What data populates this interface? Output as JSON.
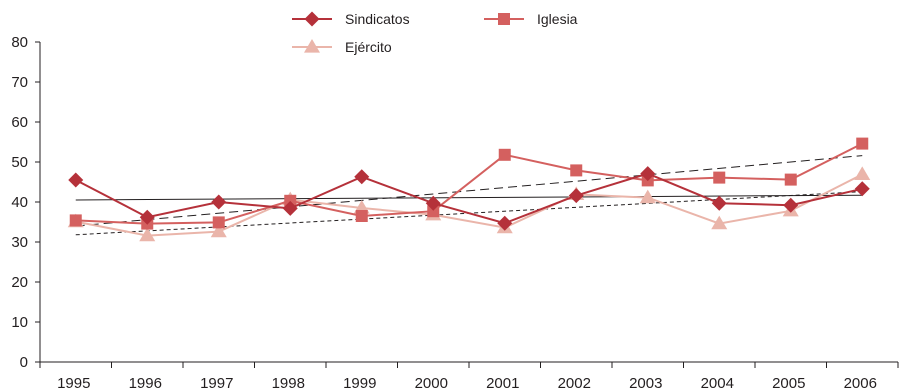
{
  "chart_data": {
    "type": "line",
    "title": "",
    "xlabel": "",
    "ylabel": "",
    "ylim": [
      0,
      80
    ],
    "yticks": [
      0,
      10,
      20,
      30,
      40,
      50,
      60,
      70,
      80
    ],
    "grid": false,
    "legend_position": "top-center",
    "categories": [
      "1995",
      "1996",
      "1997",
      "1998",
      "1999",
      "2000",
      "2001",
      "2002",
      "2003",
      "2004",
      "2005",
      "2006"
    ],
    "series": [
      {
        "name": "Sindicatos",
        "marker": "diamond",
        "color": "#b5313a",
        "values": [
          45.5,
          36.2,
          40.0,
          38.4,
          46.3,
          39.7,
          34.7,
          41.6,
          47.1,
          39.7,
          39.2,
          43.3
        ]
      },
      {
        "name": "Iglesia",
        "marker": "square",
        "color": "#d4605f",
        "values": [
          35.4,
          34.6,
          34.9,
          40.3,
          36.5,
          37.7,
          51.8,
          47.9,
          45.4,
          46.1,
          45.6,
          54.6
        ]
      },
      {
        "name": "Ejército",
        "marker": "triangle",
        "color": "#eab5aa",
        "values": [
          35.1,
          31.6,
          32.6,
          40.6,
          38.5,
          36.8,
          33.6,
          41.9,
          41.1,
          34.6,
          37.8,
          46.9
        ]
      }
    ],
    "trendlines": [
      {
        "of": "Sindicatos",
        "style": "solid",
        "color": "#231f20",
        "start": 40.5,
        "end": 41.7
      },
      {
        "of": "Iglesia",
        "style": "long-dash",
        "color": "#231f20",
        "start": 34.0,
        "end": 51.6
      },
      {
        "of": "Ejército",
        "style": "short-dash",
        "color": "#231f20",
        "start": 31.8,
        "end": 42.6
      }
    ]
  }
}
